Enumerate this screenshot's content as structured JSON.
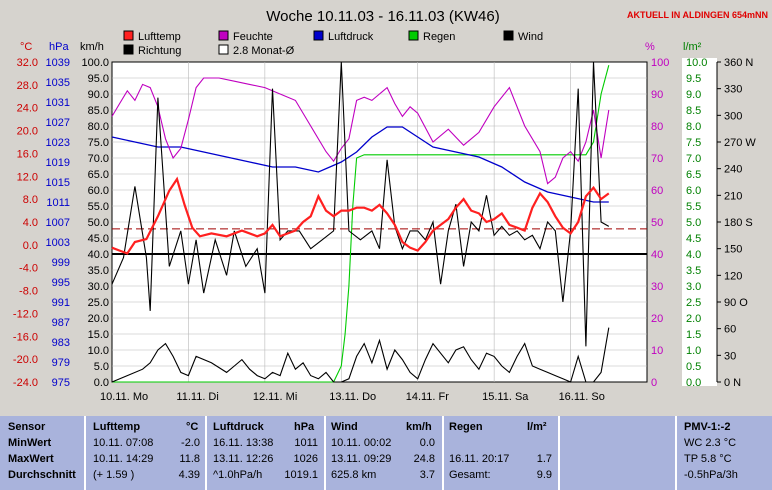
{
  "title": "Woche 10.11.03 - 16.11.03 (KW46)",
  "location_note": "AKTUELL IN ALDINGEN 654mNN",
  "unit_labels": {
    "temp": "°C",
    "press": "hPa",
    "wind": "km/h",
    "hum": "%",
    "rain": "l/m²"
  },
  "legend": [
    {
      "label": "Lufttemp",
      "color": "#ff2020",
      "style": "fill"
    },
    {
      "label": "Feuchte",
      "color": "#c000c0",
      "style": "fill"
    },
    {
      "label": "Luftdruck",
      "color": "#0000cc",
      "style": "fill"
    },
    {
      "label": "Regen",
      "color": "#00cc00",
      "style": "fill"
    },
    {
      "label": "Wind",
      "color": "#000000",
      "style": "fill"
    },
    {
      "label": "Richtung",
      "color": "#000000",
      "style": "fill"
    },
    {
      "label": "2.8 Monat-Ø",
      "color": "#ffffff",
      "style": "outline"
    }
  ],
  "chart_data": {
    "type": "line",
    "title": "Woche 10.11.03 - 16.11.03 (KW46)",
    "x_tick_labels": [
      "10.11. Mo",
      "11.11. Di",
      "12.11. Mi",
      "13.11. Do",
      "14.11. Fr",
      "15.11. Sa",
      "16.11. So"
    ],
    "axes": {
      "temp": {
        "unit": "°C",
        "min": -24,
        "max": 32,
        "color": "#cc0000",
        "ticks": [
          "32.0",
          "28.0",
          "24.0",
          "20.0",
          "16.0",
          "12.0",
          "8.0",
          "4.0",
          "0.0",
          "-4.0",
          "-8.0",
          "-12.0",
          "-16.0",
          "-20.0",
          "-24.0"
        ]
      },
      "press": {
        "unit": "hPa",
        "min": 975,
        "max": 1039,
        "color": "#0000cc",
        "ticks": [
          "1039",
          "1035",
          "1031",
          "1027",
          "1023",
          "1019",
          "1015",
          "1011",
          "1007",
          "1003",
          "999",
          "995",
          "991",
          "987",
          "983",
          "979",
          "975"
        ]
      },
      "wind": {
        "unit": "km/h",
        "min": 0,
        "max": 100,
        "color": "#000000",
        "ticks": [
          "100.0",
          "95.0",
          "90.0",
          "85.0",
          "80.0",
          "75.0",
          "70.0",
          "65.0",
          "60.0",
          "55.0",
          "50.0",
          "45.0",
          "40.0",
          "35.0",
          "30.0",
          "25.0",
          "20.0",
          "15.0",
          "10.0",
          "5.0",
          "0.0"
        ]
      },
      "hum": {
        "unit": "%",
        "min": 0,
        "max": 100,
        "color": "#c000c0",
        "ticks": [
          "100",
          "90",
          "80",
          "70",
          "60",
          "50",
          "40",
          "30",
          "20",
          "10",
          "0"
        ]
      },
      "rain": {
        "unit": "l/m²",
        "min": 0,
        "max": 10,
        "color": "#008000",
        "ticks": [
          "10.0",
          "9.5",
          "9.0",
          "8.5",
          "8.0",
          "7.5",
          "7.0",
          "6.5",
          "6.0",
          "5.5",
          "5.0",
          "4.5",
          "4.0",
          "3.5",
          "3.0",
          "2.5",
          "2.0",
          "1.5",
          "1.0",
          "0.5",
          "0.0"
        ]
      },
      "dir": {
        "min": 0,
        "max": 360,
        "color": "#000000",
        "ticks": [
          "360 N",
          "330",
          "300",
          "270 W",
          "240",
          "210",
          "180 S",
          "150",
          "120",
          "90 O",
          "60",
          "30",
          "0 N"
        ]
      }
    },
    "series": [
      {
        "name": "Lufttemp",
        "color": "#ff2020",
        "axis": "temp",
        "x": [
          0,
          0.1,
          0.2,
          0.3,
          0.45,
          0.6,
          0.75,
          0.85,
          0.95,
          1.05,
          1.15,
          1.3,
          1.5,
          1.7,
          1.9,
          2.0,
          2.1,
          2.2,
          2.3,
          2.4,
          2.5,
          2.6,
          2.7,
          2.8,
          2.9,
          3.0,
          3.1,
          3.2,
          3.3,
          3.4,
          3.5,
          3.6,
          3.7,
          3.8,
          3.9,
          4.0,
          4.1,
          4.2,
          4.3,
          4.4,
          4.5,
          4.6,
          4.7,
          4.8,
          4.9,
          5.0,
          5.1,
          5.2,
          5.3,
          5.4,
          5.5,
          5.6,
          5.7,
          5.8,
          5.9,
          6.0,
          6.1,
          6.2,
          6.3,
          6.4,
          6.5
        ],
        "values": [
          -0.5,
          -1.0,
          -1.5,
          0.5,
          1.0,
          5.0,
          9.5,
          11.5,
          7.0,
          3.0,
          1.5,
          2.0,
          1.5,
          2.5,
          1.5,
          2.0,
          3.5,
          1.5,
          2.0,
          2.5,
          4.0,
          5.0,
          8.5,
          6.0,
          5.0,
          6.0,
          6.0,
          6.5,
          6.5,
          6.0,
          7.0,
          5.5,
          3.5,
          0.5,
          -0.5,
          -1.0,
          0.5,
          2.5,
          3.5,
          4.5,
          6.5,
          8.0,
          6.0,
          5.5,
          4.0,
          4.5,
          5.5,
          3.5,
          3.0,
          2.5,
          6.5,
          9.0,
          7.5,
          5.0,
          3.0,
          2.0,
          4.0,
          8.5,
          10.0,
          8.0,
          9.0
        ]
      },
      {
        "name": "Feuchte",
        "color": "#c000c0",
        "axis": "hum",
        "x": [
          0,
          0.1,
          0.2,
          0.3,
          0.4,
          0.5,
          0.6,
          0.7,
          0.8,
          0.9,
          1.0,
          1.1,
          1.2,
          1.3,
          1.4,
          1.6,
          1.8,
          2.0,
          2.2,
          2.4,
          2.6,
          2.8,
          2.9,
          3.0,
          3.1,
          3.2,
          3.3,
          3.4,
          3.5,
          3.6,
          3.7,
          3.8,
          3.9,
          4.0,
          4.2,
          4.4,
          4.6,
          4.8,
          5.0,
          5.2,
          5.4,
          5.6,
          5.7,
          5.8,
          5.9,
          6.0,
          6.1,
          6.2,
          6.3,
          6.4,
          6.5
        ],
        "values": [
          83,
          87,
          91,
          88,
          93,
          92,
          86,
          76,
          70,
          73,
          82,
          92,
          95,
          95,
          95,
          94,
          93,
          92,
          90,
          88,
          80,
          72,
          69,
          73,
          76,
          88,
          89,
          88,
          90,
          92,
          87,
          83,
          86,
          84,
          75,
          79,
          74,
          78,
          86,
          92,
          80,
          72,
          62,
          64,
          70,
          72,
          69,
          75,
          85,
          70,
          85
        ]
      },
      {
        "name": "Luftdruck",
        "color": "#0000cc",
        "axis": "press",
        "x": [
          0,
          0.3,
          0.6,
          0.9,
          1.2,
          1.5,
          1.8,
          2.1,
          2.4,
          2.7,
          3.0,
          3.2,
          3.4,
          3.6,
          3.8,
          4.0,
          4.2,
          4.5,
          4.8,
          5.1,
          5.4,
          5.7,
          6.0,
          6.3,
          6.5
        ],
        "values": [
          1024,
          1023,
          1022,
          1022,
          1021,
          1020,
          1019,
          1018,
          1018,
          1017,
          1019,
          1021,
          1024,
          1026,
          1026,
          1024,
          1022,
          1021,
          1020,
          1018,
          1015,
          1013,
          1012,
          1011,
          1011
        ]
      },
      {
        "name": "Regen",
        "color": "#00cc00",
        "axis": "rain",
        "x": [
          0,
          2.9,
          3.0,
          3.05,
          3.1,
          3.15,
          3.2,
          3.3,
          4.0,
          5.0,
          6.0,
          6.2,
          6.3,
          6.4,
          6.5
        ],
        "values": [
          0,
          0,
          0.5,
          1.5,
          3.0,
          5.5,
          7.0,
          7.1,
          7.1,
          7.1,
          7.1,
          7.1,
          7.5,
          9.0,
          9.9
        ]
      },
      {
        "name": "Wind",
        "color": "#000000",
        "axis": "wind",
        "x": [
          0,
          0.2,
          0.4,
          0.5,
          0.6,
          0.7,
          0.8,
          0.9,
          1.0,
          1.1,
          1.3,
          1.5,
          1.6,
          1.7,
          1.8,
          1.9,
          2.0,
          2.1,
          2.2,
          2.3,
          2.4,
          2.5,
          2.6,
          2.7,
          2.8,
          2.9,
          3.0,
          3.1,
          3.2,
          3.3,
          3.4,
          3.5,
          3.6,
          3.7,
          3.8,
          3.9,
          4.0,
          4.1,
          4.2,
          4.3,
          4.4,
          4.5,
          4.6,
          4.7,
          4.8,
          4.9,
          5.0,
          5.1,
          5.2,
          5.3,
          5.4,
          5.5,
          5.6,
          5.7,
          5.8,
          5.9,
          6.0,
          6.1,
          6.2,
          6.3,
          6.4,
          6.5
        ],
        "values": [
          0,
          2,
          4,
          6,
          10,
          12,
          8,
          3,
          2,
          8,
          6,
          3,
          5,
          7,
          4,
          2,
          1,
          3,
          2,
          9,
          4,
          6,
          2,
          1,
          3,
          0,
          0,
          1,
          8,
          12,
          6,
          13,
          4,
          10,
          7,
          3,
          1,
          7,
          12,
          9,
          6,
          10,
          11,
          7,
          4,
          9,
          8,
          5,
          3,
          8,
          12,
          5,
          4,
          3,
          2,
          1,
          0,
          8,
          0,
          0,
          3,
          17
        ]
      },
      {
        "name": "Richtung",
        "color": "#000000",
        "axis": "dir",
        "x": [
          0,
          0.15,
          0.3,
          0.45,
          0.5,
          0.6,
          0.75,
          0.9,
          1.0,
          1.1,
          1.2,
          1.35,
          1.5,
          1.6,
          1.75,
          1.9,
          2.0,
          2.1,
          2.2,
          2.3,
          2.45,
          2.6,
          2.75,
          2.9,
          3.0,
          3.1,
          3.25,
          3.4,
          3.5,
          3.6,
          3.7,
          3.8,
          3.9,
          4.0,
          4.1,
          4.2,
          4.3,
          4.4,
          4.5,
          4.6,
          4.7,
          4.8,
          4.9,
          5.0,
          5.1,
          5.2,
          5.3,
          5.4,
          5.5,
          5.6,
          5.7,
          5.8,
          5.9,
          6.0,
          6.1,
          6.2,
          6.3,
          6.4,
          6.5
        ],
        "values": [
          110,
          140,
          220,
          140,
          80,
          320,
          130,
          170,
          110,
          160,
          100,
          160,
          120,
          170,
          130,
          150,
          100,
          330,
          160,
          170,
          170,
          150,
          160,
          170,
          360,
          170,
          160,
          170,
          150,
          250,
          175,
          150,
          170,
          170,
          160,
          180,
          110,
          170,
          200,
          130,
          180,
          170,
          210,
          165,
          175,
          165,
          170,
          160,
          165,
          150,
          180,
          170,
          90,
          170,
          330,
          40,
          360,
          180,
          175
        ]
      }
    ],
    "reference_lines": [
      {
        "label": "2.8 Monat-Ø",
        "axis": "temp",
        "value": 2.8,
        "style": "dashed",
        "color": "#a00000"
      },
      {
        "axis": "wind",
        "value": 40,
        "style": "solid",
        "color": "#000000"
      }
    ],
    "grid": true
  },
  "table": {
    "headers": {
      "sensor": "Sensor",
      "temp": "Lufttemp",
      "temp_unit": "°C",
      "press": "Luftdruck",
      "press_unit": "hPa",
      "wind": "Wind",
      "wind_unit": "km/h",
      "rain": "Regen",
      "rain_unit": "l/m²",
      "pmv": "PMV-1:-2"
    },
    "rows": [
      {
        "label": "MinWert",
        "temp_time": "10.11.  07:08",
        "temp_val": "-2.0",
        "press_time": "16.11.  13:38",
        "press_val": "1011",
        "wind_time": "10.11.  00:02",
        "wind_val": "0.0",
        "rain_time": "",
        "rain_val": "",
        "pmv": "WC 2.3 °C"
      },
      {
        "label": "MaxWert",
        "temp_time": "10.11.  14:29",
        "temp_val": "11.8",
        "press_time": "13.11.  12:26",
        "press_val": "1026",
        "wind_time": "13.11.  09:29",
        "wind_val": "24.8",
        "rain_time": "16.11.  20:17",
        "rain_val": "1.7",
        "pmv": "TP 5.8 °C"
      },
      {
        "label": "Durchschnitt",
        "temp_time": "(+ 1.59 )",
        "temp_val": "4.39",
        "press_time": "^1.0hPa/h",
        "press_val": "1019.1",
        "wind_time": "625.8 km",
        "wind_val": "3.7",
        "rain_time": "Gesamt:",
        "rain_val": "9.9",
        "pmv": "-0.5hPa/3h"
      }
    ]
  }
}
